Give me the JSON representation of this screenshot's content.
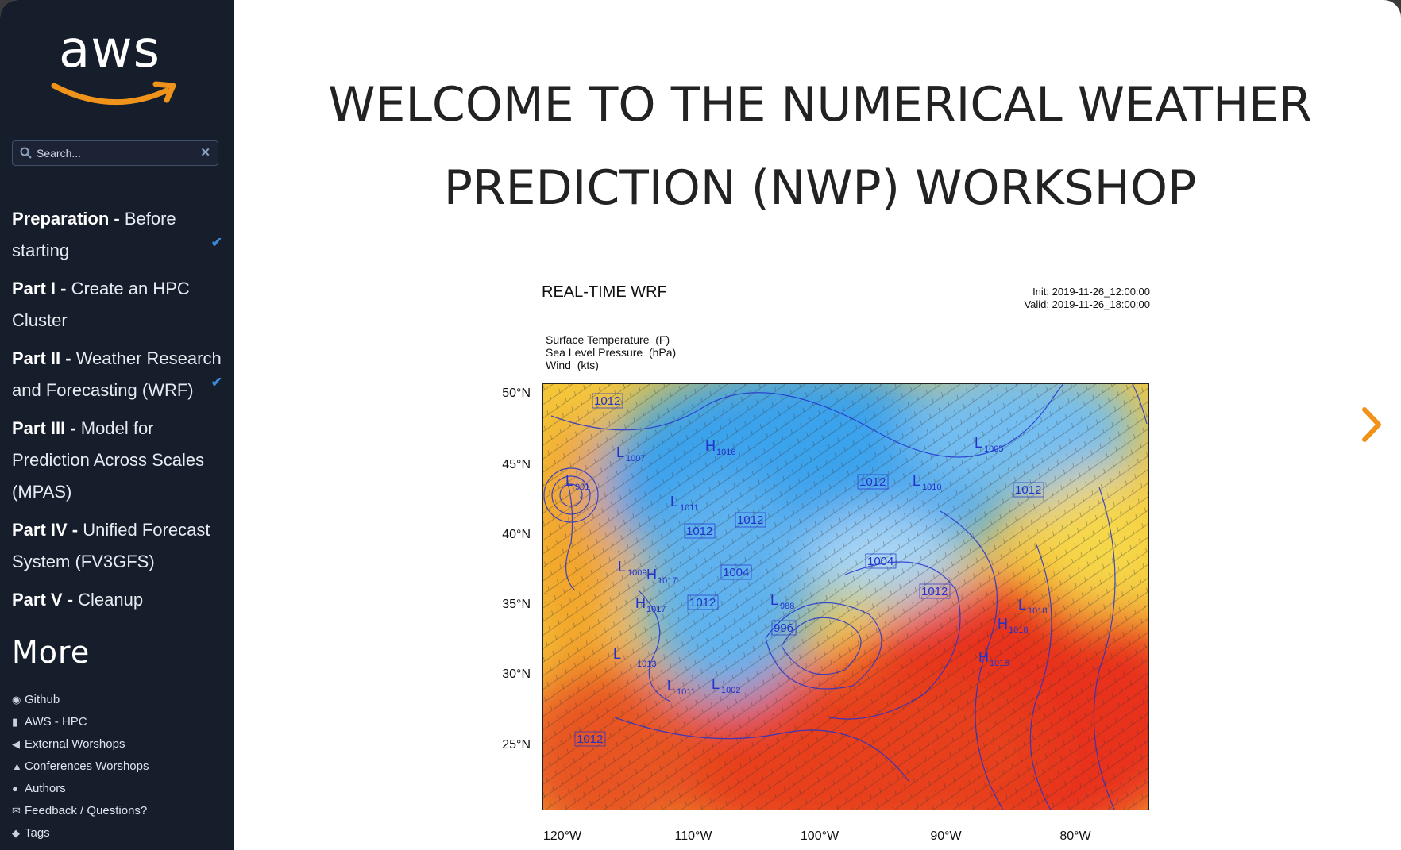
{
  "sidebar": {
    "logo_text": "aws",
    "search_placeholder": "Search...",
    "nav": [
      {
        "bold": "Preparation - ",
        "rest": "Before starting",
        "checked": true
      },
      {
        "bold": "Part I - ",
        "rest": "Create an HPC Cluster",
        "checked": false
      },
      {
        "bold": "Part II - ",
        "rest": "Weather Research and Forecasting (WRF)",
        "checked": true
      },
      {
        "bold": "Part III - ",
        "rest": "Model for Prediction Across Scales (MPAS)",
        "checked": false
      },
      {
        "bold": "Part IV - ",
        "rest": "Unified Forecast System (FV3GFS)",
        "checked": false
      },
      {
        "bold": "Part V - ",
        "rest": "Cleanup",
        "checked": false
      }
    ],
    "more_title": "More",
    "links": [
      {
        "icon": "github-icon",
        "label": "Github"
      },
      {
        "icon": "bookmark-icon",
        "label": "AWS - HPC"
      },
      {
        "icon": "megaphone-icon",
        "label": "External Worshops"
      },
      {
        "icon": "flask-icon",
        "label": "Conferences Worshops"
      },
      {
        "icon": "users-icon",
        "label": "Authors"
      },
      {
        "icon": "envelope-icon",
        "label": "Feedback / Questions?"
      },
      {
        "icon": "tags-icon",
        "label": "Tags"
      }
    ]
  },
  "main": {
    "title_line1": "WELCOME TO THE NUMERICAL WEATHER",
    "title_line2": "PREDICTION (NWP) WORKSHOP",
    "next_icon": "chevron-right-icon",
    "accent_color": "#f0931b"
  },
  "figure": {
    "title": "REAL-TIME WRF",
    "init": "Init: 2019-11-26_12:00:00",
    "valid": "Valid: 2019-11-26_18:00:00",
    "legend": [
      {
        "name": "Surface Temperature",
        "unit": "(F)"
      },
      {
        "name": "Sea Level Pressure",
        "unit": "(hPa)"
      },
      {
        "name": "Wind",
        "unit": "(kts)"
      }
    ],
    "lat_ticks": [
      "50°N",
      "45°N",
      "40°N",
      "35°N",
      "30°N",
      "25°N"
    ],
    "lon_ticks": [
      "120°W",
      "110°W",
      "100°W",
      "90°W",
      "80°W"
    ],
    "pressure_labels": [
      {
        "type": "L",
        "value": "1007"
      },
      {
        "type": "H",
        "value": "1016"
      },
      {
        "type": "L",
        "value": "1005"
      },
      {
        "type": "L",
        "value": "991"
      },
      {
        "type": "L",
        "value": "1010"
      },
      {
        "type": "L",
        "value": "1011"
      },
      {
        "type": "L",
        "value": "1009"
      },
      {
        "type": "H",
        "value": "1017"
      },
      {
        "type": "L",
        "value": "988"
      },
      {
        "type": "L",
        "value": "1018"
      },
      {
        "type": "H",
        "value": "1018"
      },
      {
        "type": "L",
        "value": "1002"
      }
    ],
    "contour_labels": [
      "1012",
      "1012",
      "1012",
      "1012",
      "1004",
      "1004",
      "1012",
      "1012",
      "996",
      "1012"
    ]
  }
}
